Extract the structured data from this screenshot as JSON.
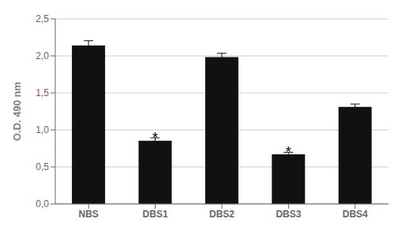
{
  "chart_data": {
    "type": "bar",
    "categories": [
      "NBS",
      "DBS1",
      "DBS2",
      "DBS3",
      "DBS4"
    ],
    "values": [
      2.14,
      0.855,
      1.985,
      0.67,
      1.31
    ],
    "errors": [
      0.065,
      0.038,
      0.05,
      0.028,
      0.04
    ],
    "color": "#111111",
    "ylabel": "O.D. 490 nm",
    "ylim": [
      0,
      2.5
    ],
    "yticks": [
      {
        "value": 0.0,
        "label": "0,0"
      },
      {
        "value": 0.5,
        "label": "0,5"
      },
      {
        "value": 1.0,
        "label": "1,0"
      },
      {
        "value": 1.5,
        "label": "1,5"
      },
      {
        "value": 2.0,
        "label": "2,0"
      },
      {
        "value": 2.5,
        "label": "2,5"
      }
    ],
    "grid": true,
    "annotations": [
      {
        "text": "*",
        "category": "DBS1"
      },
      {
        "text": "*",
        "category": "DBS3"
      }
    ]
  }
}
